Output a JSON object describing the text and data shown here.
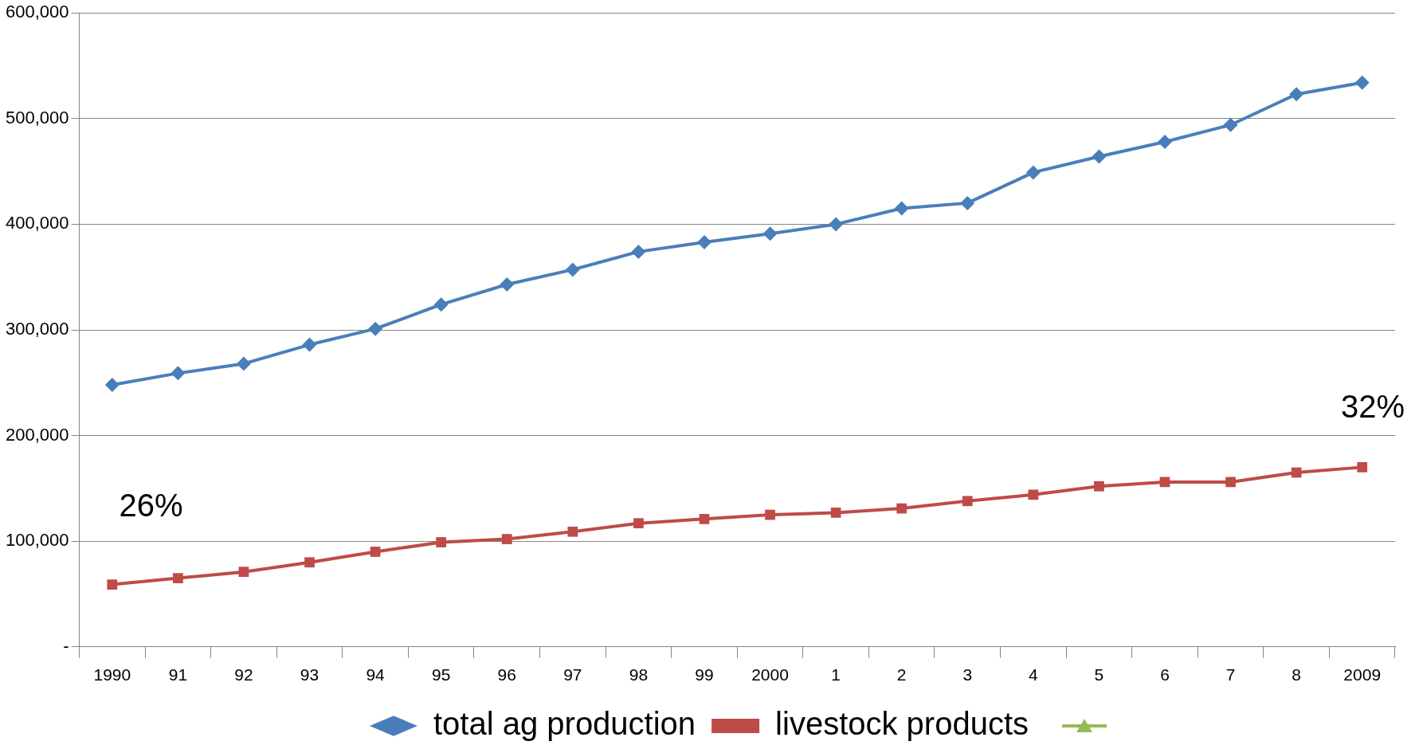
{
  "chart_data": {
    "type": "line",
    "categories": [
      "1990",
      "91",
      "92",
      "93",
      "94",
      "95",
      "96",
      "97",
      "98",
      "99",
      "2000",
      "1",
      "2",
      "3",
      "4",
      "5",
      "6",
      "7",
      "8",
      "2009"
    ],
    "series": [
      {
        "name": "total ag production",
        "color": "#4a7ebb",
        "marker": "diamond",
        "values": [
          248000,
          259000,
          268000,
          286000,
          301000,
          324000,
          343000,
          357000,
          374000,
          383000,
          391000,
          400000,
          415000,
          420000,
          449000,
          464000,
          478000,
          494000,
          523000,
          534000
        ]
      },
      {
        "name": "livestock products",
        "color": "#be4b48",
        "marker": "square",
        "values": [
          59000,
          65000,
          71000,
          80000,
          90000,
          99000,
          102000,
          109000,
          117000,
          121000,
          125000,
          127000,
          131000,
          138000,
          144000,
          152000,
          156000,
          156000,
          165000,
          170000
        ]
      }
    ],
    "ylim": [
      0,
      600000
    ],
    "yticks": [
      {
        "value": 0,
        "label": "-"
      },
      {
        "value": 100000,
        "label": "100,000"
      },
      {
        "value": 200000,
        "label": "200,000"
      },
      {
        "value": 300000,
        "label": "300,000"
      },
      {
        "value": 400000,
        "label": "400,000"
      },
      {
        "value": 500000,
        "label": "500,000"
      },
      {
        "value": 600000,
        "label": "600,000"
      }
    ],
    "annotations": [
      "26%",
      "32%"
    ],
    "grid": "y",
    "legend": "bottom",
    "line_style": "solid"
  }
}
